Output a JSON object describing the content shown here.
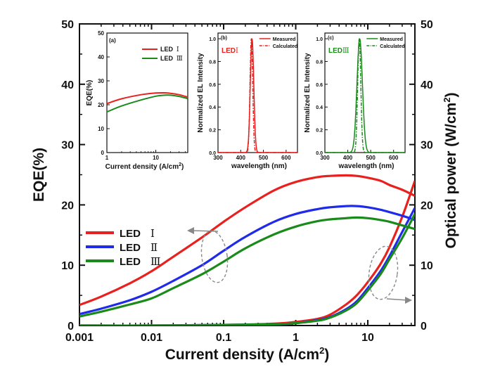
{
  "chart_data": [
    {
      "type": "line",
      "title": "",
      "xlabel": "Current density (A/cm",
      "xlabel_sup": "2",
      "xlabel_end": ")",
      "ylabel_left": "EQE(%)",
      "ylabel_right": "Optical power (W/cm",
      "ylabel_right_sup": "2",
      "ylabel_right_end": ")",
      "x_scale": "log",
      "xlim": [
        0.001,
        45
      ],
      "ylim_left": [
        0,
        50
      ],
      "ylim_right": [
        0,
        50
      ],
      "x_tick_labels": [
        "0.001",
        "0.01",
        "0.1",
        "1",
        "10"
      ],
      "y_tick_labels": [
        "0",
        "10",
        "20",
        "30",
        "40",
        "50"
      ],
      "legend_position": "center-left",
      "series": [
        {
          "name": "LED",
          "suffix": "Ⅰ",
          "color": "#e8211f",
          "eqe": {
            "x": [
              0.001,
              0.002,
              0.005,
              0.01,
              0.02,
              0.05,
              0.1,
              0.2,
              0.5,
              1,
              2,
              3,
              5,
              7,
              10,
              15,
              20,
              30,
              45
            ],
            "y": [
              3.4,
              4.8,
              7.0,
              9.0,
              11.4,
              14.6,
              17.2,
              19.6,
              22.4,
              23.8,
              24.6,
              24.8,
              24.9,
              24.8,
              24.5,
              24.0,
              23.3,
              22.5,
              21.5
            ]
          },
          "power": {
            "x": [
              0.01,
              0.1,
              0.5,
              1,
              2,
              3,
              5,
              7,
              10,
              15,
              20,
              30,
              45
            ],
            "y": [
              0,
              0.1,
              0.3,
              0.6,
              1.1,
              1.8,
              3.5,
              5.0,
              7.2,
              10.2,
              13.0,
              18.0,
              24.0
            ]
          }
        },
        {
          "name": "LED",
          "suffix": "Ⅱ",
          "color": "#1f2be8",
          "eqe": {
            "x": [
              0.001,
              0.002,
              0.005,
              0.01,
              0.02,
              0.05,
              0.1,
              0.2,
              0.5,
              1,
              2,
              3,
              5,
              7,
              10,
              15,
              20,
              30,
              45
            ],
            "y": [
              1.9,
              2.8,
              4.2,
              5.6,
              7.4,
              10.0,
              12.4,
              14.7,
              17.2,
              18.5,
              19.3,
              19.6,
              19.8,
              19.8,
              19.6,
              19.2,
              18.8,
              18.2,
              17.5
            ]
          },
          "power": {
            "x": [
              0.01,
              0.1,
              0.5,
              1,
              2,
              3,
              5,
              7,
              10,
              15,
              20,
              30,
              45
            ],
            "y": [
              0,
              0.1,
              0.2,
              0.4,
              0.9,
              1.4,
              2.7,
              4.0,
              6.2,
              9.0,
              11.5,
              15.5,
              19.5
            ]
          }
        },
        {
          "name": "LED",
          "suffix": "Ⅲ",
          "color": "#1a8a1a",
          "eqe": {
            "x": [
              0.001,
              0.002,
              0.005,
              0.01,
              0.02,
              0.05,
              0.1,
              0.2,
              0.5,
              1,
              2,
              3,
              5,
              7,
              10,
              15,
              20,
              30,
              45
            ],
            "y": [
              1.5,
              2.3,
              3.5,
              4.5,
              6.2,
              8.5,
              10.6,
              12.8,
              15.1,
              16.4,
              17.3,
              17.6,
              17.8,
              17.9,
              17.8,
              17.5,
              17.2,
              16.6,
              16.0
            ]
          },
          "power": {
            "x": [
              0.01,
              0.1,
              0.5,
              1,
              2,
              3,
              5,
              7,
              10,
              15,
              20,
              30,
              45
            ],
            "y": [
              0,
              0.1,
              0.2,
              0.4,
              0.8,
              1.3,
              2.5,
              3.7,
              5.8,
              8.5,
              11.0,
              14.5,
              18.5
            ]
          }
        }
      ]
    },
    {
      "panel": "(a)",
      "type": "line",
      "xlabel": "Current density (A/cm",
      "xlabel_sup": "2",
      "xlabel_end": ")",
      "ylabel": "EQE(%)",
      "x_scale": "log",
      "xlim": [
        1,
        45
      ],
      "ylim": [
        0,
        50
      ],
      "x_tick_labels": [
        "1",
        "10"
      ],
      "y_tick_labels": [
        "0",
        "10",
        "20",
        "30",
        "40",
        "50"
      ],
      "series": [
        {
          "name": "LED",
          "suffix": "Ⅰ",
          "color": "#e8211f",
          "x": [
            1,
            2,
            5,
            10,
            15,
            20,
            30,
            45
          ],
          "y": [
            20.5,
            22.5,
            24.2,
            24.9,
            25.0,
            24.8,
            24.2,
            23.2
          ]
        },
        {
          "name": "LED",
          "suffix": "Ⅲ",
          "color": "#1a8a1a",
          "x": [
            1,
            2,
            5,
            10,
            15,
            20,
            30,
            45
          ],
          "y": [
            17.0,
            19.5,
            22.0,
            23.6,
            24.0,
            24.0,
            23.5,
            22.6
          ]
        }
      ]
    },
    {
      "panel": "(b)",
      "type": "line",
      "label": "LED",
      "label_suffix": "Ⅰ",
      "xlabel": "wavelength (nm)",
      "ylabel": "Normalized EL Intensity",
      "xlim": [
        300,
        650
      ],
      "ylim": [
        0,
        1.05
      ],
      "x_tick_labels": [
        "300",
        "400",
        "500",
        "600"
      ],
      "y_tick_labels": [
        "0.0",
        "0.2",
        "0.4",
        "0.6",
        "0.8",
        "1.0"
      ],
      "legend": [
        "Measured",
        "Calculated"
      ],
      "color": "#e8211f",
      "series": [
        {
          "name": "Measured",
          "peak": 450,
          "fwhm": 18
        },
        {
          "name": "Calculated",
          "peak": 447,
          "fwhm": 14
        }
      ]
    },
    {
      "panel": "(c)",
      "type": "line",
      "label": "LED",
      "label_suffix": "Ⅲ",
      "xlabel": "wavelength (nm)",
      "ylabel": "Normalized EL Intensity",
      "xlim": [
        300,
        650
      ],
      "ylim": [
        0,
        1.05
      ],
      "x_tick_labels": [
        "300",
        "400",
        "500",
        "600"
      ],
      "y_tick_labels": [
        "0.0",
        "0.2",
        "0.4",
        "0.6",
        "0.8",
        "1.0"
      ],
      "legend": [
        "Measured",
        "Calculated"
      ],
      "color": "#1a8a1a",
      "series": [
        {
          "name": "Measured",
          "peak": 452,
          "fwhm": 28
        },
        {
          "name": "Calculated",
          "peak": 450,
          "fwhm": 16
        }
      ]
    }
  ]
}
